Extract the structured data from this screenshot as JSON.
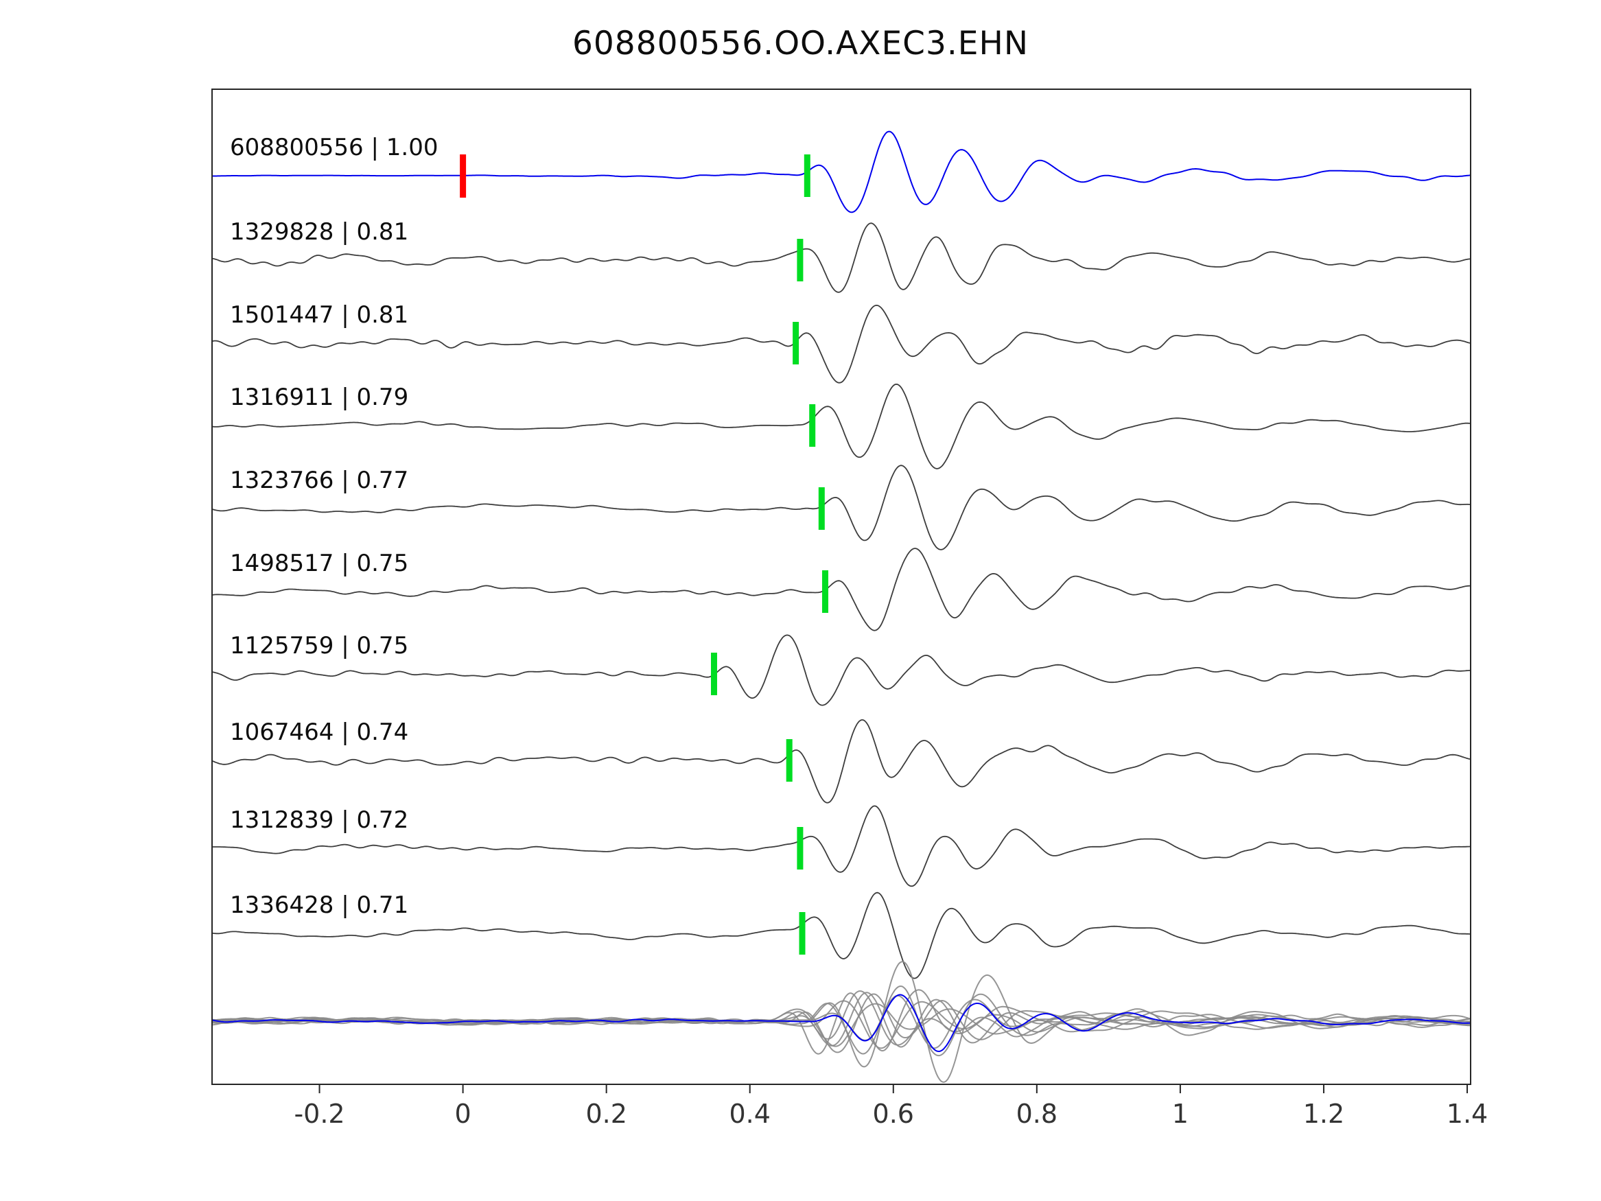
{
  "title": "608800556.OO.AXEC3.EHN",
  "colors": {
    "template_trace": "#0000ee",
    "match_trace": "#3d3d3d",
    "overlay_gray": "#8a8a8a",
    "overlay_blue": "#0000ee",
    "pick_marker_green": "#00dd22",
    "origin_marker_red": "#ff0000",
    "axis": "#262626",
    "tick_label": "#333333"
  },
  "chart_data": {
    "type": "line",
    "title": "608800556.OO.AXEC3.EHN",
    "xlabel": "",
    "ylabel": "",
    "xlim": [
      -0.35,
      1.4
    ],
    "x_ticks": [
      -0.2,
      0,
      0.2,
      0.4,
      0.6,
      0.8,
      1,
      1.2,
      1.4
    ],
    "x_tick_labels": [
      "-0.2",
      "0",
      "0.2",
      "0.4",
      "0.6",
      "0.8",
      "1",
      "1.2",
      "1.4"
    ],
    "grid": false,
    "legend": "none",
    "traces": [
      {
        "label": "608800556 | 1.00",
        "id": "608800556",
        "correlation": 1.0,
        "pick_time": 0.48,
        "origin_marker_time": 0.0,
        "role": "template"
      },
      {
        "label": "1329828 | 0.81",
        "id": "1329828",
        "correlation": 0.81,
        "pick_time": 0.47,
        "role": "match"
      },
      {
        "label": "1501447 | 0.81",
        "id": "1501447",
        "correlation": 0.81,
        "pick_time": 0.464,
        "role": "match"
      },
      {
        "label": "1316911 | 0.79",
        "id": "1316911",
        "correlation": 0.79,
        "pick_time": 0.487,
        "role": "match"
      },
      {
        "label": "1323766 | 0.77",
        "id": "1323766",
        "correlation": 0.77,
        "pick_time": 0.5,
        "role": "match"
      },
      {
        "label": "1498517 | 0.75",
        "id": "1498517",
        "correlation": 0.75,
        "pick_time": 0.505,
        "role": "match"
      },
      {
        "label": "1125759 | 0.75",
        "id": "1125759",
        "correlation": 0.75,
        "pick_time": 0.35,
        "role": "match"
      },
      {
        "label": "1067464 | 0.74",
        "id": "1067464",
        "correlation": 0.74,
        "pick_time": 0.455,
        "role": "match"
      },
      {
        "label": "1312839 | 0.72",
        "id": "1312839",
        "correlation": 0.72,
        "pick_time": 0.47,
        "role": "match"
      },
      {
        "label": "1336428 | 0.71",
        "id": "1336428",
        "correlation": 0.71,
        "pick_time": 0.473,
        "role": "match"
      }
    ],
    "overlay_row": {
      "description": "all matched traces overlaid (gray) with template waveform overlaid in blue",
      "n_gray_traces": 9,
      "has_blue_template": true
    }
  },
  "layout_note_marker_colors": {
    "green_bars": "pick times on each trace",
    "red_bar": "template origin time at 0 on top trace"
  }
}
